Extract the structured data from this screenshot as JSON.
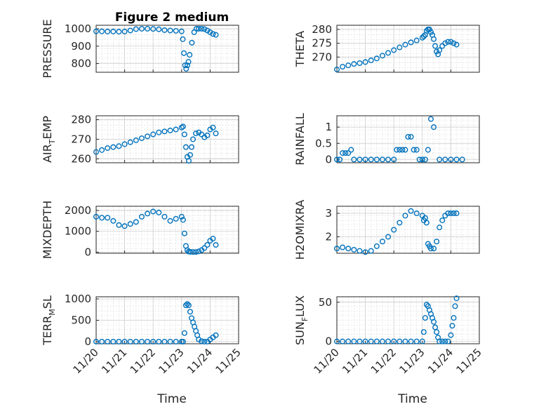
{
  "figure": {
    "title": "Figure 2 medium"
  },
  "colors": {
    "marker": "#0072BD",
    "axes": "#262626",
    "grid": "#cfcfcf"
  },
  "chart_data": [
    {
      "type": "scatter",
      "ylabel": "PRESSURE",
      "ylabel_sub": null,
      "xlim": [
        0,
        5
      ],
      "ylim": [
        750,
        1020
      ],
      "yticks": [
        800,
        900,
        1000
      ],
      "ytick_labels": [
        "800",
        "900",
        "1000"
      ],
      "xtick_labels": [],
      "x": [
        0.0,
        0.2,
        0.4,
        0.6,
        0.8,
        1.0,
        1.2,
        1.4,
        1.6,
        1.8,
        2.0,
        2.2,
        2.4,
        2.6,
        2.8,
        3.0,
        3.04,
        3.08,
        3.12,
        3.16,
        3.2,
        3.24,
        3.28,
        3.36,
        3.44,
        3.52,
        3.6,
        3.7,
        3.8,
        3.9,
        4.0,
        4.1,
        4.2
      ],
      "y": [
        985,
        985,
        984,
        984,
        983,
        984,
        990,
        998,
        1000,
        1000,
        999,
        997,
        992,
        990,
        988,
        985,
        940,
        860,
        790,
        770,
        790,
        810,
        850,
        920,
        980,
        1000,
        1000,
        1000,
        998,
        990,
        980,
        970,
        965
      ]
    },
    {
      "type": "scatter",
      "ylabel": "THETA",
      "ylabel_sub": null,
      "xlim": [
        0,
        5
      ],
      "ylim": [
        264.5,
        281.5
      ],
      "yticks": [
        270,
        275,
        280
      ],
      "ytick_labels": [
        "270",
        "275",
        "280"
      ],
      "xtick_labels": [],
      "x": [
        0.0,
        0.2,
        0.4,
        0.6,
        0.8,
        1.0,
        1.2,
        1.4,
        1.6,
        1.8,
        2.0,
        2.2,
        2.4,
        2.6,
        2.8,
        3.0,
        3.05,
        3.1,
        3.15,
        3.2,
        3.25,
        3.3,
        3.35,
        3.4,
        3.45,
        3.5,
        3.55,
        3.6,
        3.7,
        3.8,
        3.9,
        4.0,
        4.1,
        4.2
      ],
      "y": [
        265.5,
        266.5,
        267.0,
        267.5,
        267.8,
        268.2,
        268.8,
        269.5,
        270.5,
        271.5,
        272.5,
        273.5,
        274.5,
        275.3,
        276.0,
        277.0,
        277.5,
        278.0,
        279.5,
        280.0,
        280.0,
        279.0,
        278.0,
        276.5,
        274.0,
        272.0,
        271.0,
        272.5,
        274.0,
        275.0,
        275.5,
        275.5,
        275.0,
        274.5
      ]
    },
    {
      "type": "scatter",
      "ylabel": "AIR",
      "ylabel_sub": "T",
      "ylabel_tail": "EMP",
      "xlim": [
        0,
        5
      ],
      "ylim": [
        258,
        282
      ],
      "yticks": [
        260,
        270,
        280
      ],
      "ytick_labels": [
        "260",
        "270",
        "280"
      ],
      "xtick_labels": [],
      "x": [
        0.0,
        0.2,
        0.4,
        0.6,
        0.8,
        1.0,
        1.2,
        1.4,
        1.6,
        1.8,
        2.0,
        2.2,
        2.4,
        2.6,
        2.8,
        3.0,
        3.05,
        3.1,
        3.15,
        3.2,
        3.25,
        3.3,
        3.35,
        3.4,
        3.5,
        3.6,
        3.7,
        3.8,
        3.9,
        4.0,
        4.1,
        4.2
      ],
      "y": [
        263.5,
        264.5,
        265.5,
        266.0,
        266.5,
        267.5,
        268.5,
        269.5,
        270.5,
        271.5,
        272.5,
        273.5,
        274.0,
        274.5,
        275.0,
        276.0,
        276.5,
        272.5,
        266.0,
        261.0,
        259.0,
        262.0,
        266.0,
        270.0,
        273.0,
        273.5,
        272.5,
        271.0,
        272.0,
        275.0,
        276.0,
        273.0
      ]
    },
    {
      "type": "scatter",
      "ylabel": "RAINFALL",
      "ylabel_sub": null,
      "xlim": [
        0,
        5
      ],
      "ylim": [
        -0.1,
        1.35
      ],
      "yticks": [
        0,
        0.5,
        1
      ],
      "ytick_labels": [
        "0",
        "0.5",
        "1"
      ],
      "xtick_labels": [],
      "x": [
        0.0,
        0.1,
        0.2,
        0.3,
        0.4,
        0.5,
        0.6,
        0.8,
        1.0,
        1.2,
        1.4,
        1.6,
        1.8,
        2.0,
        2.1,
        2.2,
        2.3,
        2.4,
        2.5,
        2.6,
        2.7,
        2.8,
        2.9,
        3.0,
        3.1,
        3.2,
        3.3,
        3.4,
        3.6,
        3.8,
        4.0,
        4.2,
        4.4
      ],
      "y": [
        0,
        0,
        0.2,
        0.2,
        0.2,
        0.3,
        0,
        0,
        0,
        0,
        0,
        0,
        0,
        0,
        0.3,
        0.3,
        0.3,
        0.3,
        0.7,
        0.7,
        0.3,
        0.3,
        0,
        0,
        0,
        0.3,
        1.25,
        1.0,
        0,
        0,
        0,
        0,
        0
      ]
    },
    {
      "type": "scatter",
      "ylabel": "MIXDEPTH",
      "ylabel_sub": null,
      "xlim": [
        0,
        5
      ],
      "ylim": [
        -50,
        2200
      ],
      "yticks": [
        0,
        1000,
        2000
      ],
      "ytick_labels": [
        "0",
        "1000",
        "2000"
      ],
      "xtick_labels": [],
      "x": [
        0.0,
        0.2,
        0.4,
        0.6,
        0.8,
        1.0,
        1.2,
        1.4,
        1.6,
        1.8,
        2.0,
        2.2,
        2.4,
        2.6,
        2.8,
        3.0,
        3.05,
        3.1,
        3.15,
        3.2,
        3.25,
        3.3,
        3.4,
        3.5,
        3.6,
        3.7,
        3.8,
        3.9,
        4.0,
        4.1,
        4.2
      ],
      "y": [
        1700,
        1650,
        1650,
        1500,
        1300,
        1250,
        1350,
        1450,
        1700,
        1850,
        1950,
        1900,
        1700,
        1500,
        1600,
        1700,
        1550,
        900,
        300,
        100,
        30,
        20,
        10,
        10,
        40,
        100,
        200,
        350,
        550,
        650,
        350
      ]
    },
    {
      "type": "scatter",
      "ylabel": "H2OMIXRA",
      "ylabel_sub": null,
      "xlim": [
        0,
        5
      ],
      "ylim": [
        1.3,
        3.3
      ],
      "yticks": [
        2,
        3
      ],
      "ytick_labels": [
        "2",
        "3"
      ],
      "xtick_labels": [],
      "x": [
        0.0,
        0.2,
        0.4,
        0.6,
        0.8,
        1.0,
        1.2,
        1.4,
        1.6,
        1.8,
        2.0,
        2.2,
        2.4,
        2.6,
        2.8,
        3.0,
        3.05,
        3.1,
        3.15,
        3.2,
        3.25,
        3.3,
        3.4,
        3.5,
        3.6,
        3.7,
        3.8,
        3.9,
        4.0,
        4.1,
        4.2
      ],
      "y": [
        1.5,
        1.55,
        1.5,
        1.45,
        1.4,
        1.35,
        1.4,
        1.6,
        1.8,
        2.0,
        2.3,
        2.6,
        2.9,
        3.1,
        3.0,
        2.9,
        2.7,
        2.8,
        2.6,
        1.7,
        1.6,
        1.5,
        1.5,
        1.8,
        2.4,
        2.7,
        2.9,
        3.0,
        3.0,
        3.0,
        3.0
      ]
    },
    {
      "type": "scatter",
      "ylabel": "TERR",
      "ylabel_sub": "M",
      "ylabel_tail": "SL",
      "xlim": [
        0,
        5
      ],
      "ylim": [
        -50,
        1050
      ],
      "yticks": [
        0,
        500,
        1000
      ],
      "ytick_labels": [
        "0",
        "500",
        "1000"
      ],
      "xtick_labels": [
        "11/20",
        "11/21",
        "11/22",
        "11/23",
        "11/24",
        "11/25"
      ],
      "x": [
        0.0,
        0.2,
        0.4,
        0.6,
        0.8,
        1.0,
        1.2,
        1.4,
        1.6,
        1.8,
        2.0,
        2.2,
        2.4,
        2.6,
        2.8,
        3.0,
        3.05,
        3.1,
        3.15,
        3.2,
        3.25,
        3.3,
        3.35,
        3.4,
        3.45,
        3.5,
        3.55,
        3.6,
        3.7,
        3.8,
        3.9,
        4.0,
        4.1,
        4.2
      ],
      "y": [
        0,
        0,
        0,
        0,
        0,
        0,
        0,
        0,
        0,
        0,
        0,
        0,
        0,
        0,
        0,
        0,
        0,
        200,
        850,
        880,
        850,
        700,
        550,
        450,
        350,
        250,
        150,
        50,
        10,
        0,
        0,
        50,
        100,
        150
      ]
    },
    {
      "type": "scatter",
      "ylabel": "SUN",
      "ylabel_sub": "F",
      "ylabel_tail": "LUX",
      "xlim": [
        0,
        5
      ],
      "ylim": [
        -3,
        57
      ],
      "yticks": [
        0,
        50
      ],
      "ytick_labels": [
        "0",
        "50"
      ],
      "xtick_labels": [
        "11/20",
        "11/21",
        "11/22",
        "11/23",
        "11/24",
        "11/25"
      ],
      "x": [
        0.0,
        0.2,
        0.4,
        0.6,
        0.8,
        1.0,
        1.2,
        1.4,
        1.6,
        1.8,
        2.0,
        2.2,
        2.4,
        2.6,
        2.8,
        3.0,
        3.05,
        3.1,
        3.15,
        3.2,
        3.25,
        3.3,
        3.35,
        3.4,
        3.45,
        3.5,
        3.55,
        3.6,
        3.7,
        3.8,
        3.9,
        4.0,
        4.05,
        4.1,
        4.15,
        4.2
      ],
      "y": [
        0,
        0,
        0,
        0,
        0,
        0,
        0,
        0,
        0,
        0,
        0,
        0,
        0,
        0,
        0,
        0,
        12,
        30,
        47,
        45,
        40,
        35,
        30,
        25,
        18,
        12,
        5,
        0,
        0,
        0,
        0,
        8,
        20,
        30,
        45,
        55
      ]
    }
  ],
  "axis_labels": {
    "x": "Time"
  }
}
